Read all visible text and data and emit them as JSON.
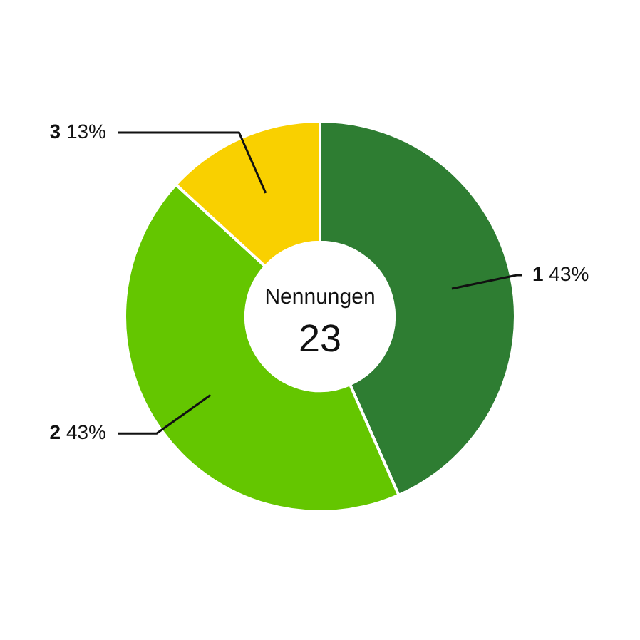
{
  "chart_data": {
    "type": "donut",
    "categories": [
      "1",
      "2",
      "3"
    ],
    "values": [
      43.4,
      43.4,
      13.2
    ],
    "colors": [
      "#2e7d32",
      "#64c600",
      "#f9d000"
    ],
    "value_labels": [
      "43%",
      "43%",
      "13%"
    ],
    "annotations": [
      "Nennungen",
      "23"
    ]
  }
}
